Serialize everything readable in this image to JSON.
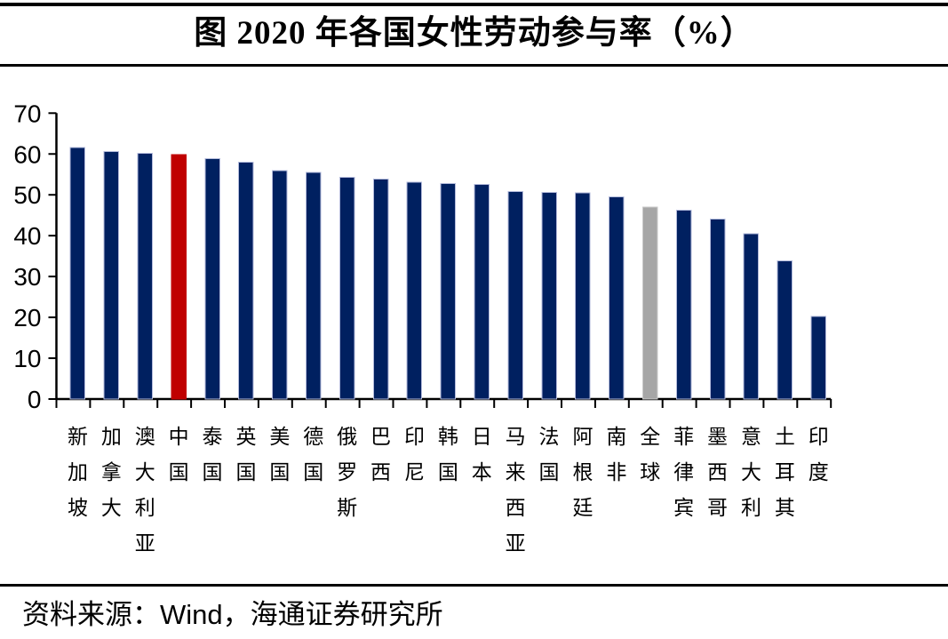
{
  "title": "图  2020 年各国女性劳动参与率（%）",
  "footer": "资料来源：Wind，海通证券研究所",
  "colors": {
    "bar_default": "#002060",
    "bar_china_highlight": "#C00000",
    "bar_global": "#A6A6A6",
    "bar_border": "#b3badb",
    "axis": "#000000",
    "rule": "#000000"
  },
  "chart_data": {
    "type": "bar",
    "title": "图 2020 年各国女性劳动参与率（%）",
    "xlabel": "",
    "ylabel": "",
    "ylim": [
      0,
      70
    ],
    "yticks": [
      0,
      10,
      20,
      30,
      40,
      50,
      60,
      70
    ],
    "grid": false,
    "legend": null,
    "categories": [
      "新加坡",
      "加拿大",
      "澳大利亚",
      "中国",
      "泰国",
      "英国",
      "美国",
      "德国",
      "俄罗斯",
      "巴西",
      "印尼",
      "韩国",
      "日本",
      "马来西亚",
      "法国",
      "阿根廷",
      "南非",
      "全球",
      "菲律宾",
      "墨西哥",
      "意大利",
      "土耳其",
      "印度"
    ],
    "values": [
      61.6,
      60.6,
      60.2,
      59.8,
      58.9,
      58.0,
      55.9,
      55.5,
      54.3,
      53.9,
      53.1,
      52.8,
      52.5,
      50.8,
      50.6,
      50.5,
      49.5,
      47.0,
      46.2,
      44.1,
      40.5,
      33.8,
      20.2
    ],
    "bar_colors": [
      "#002060",
      "#002060",
      "#002060",
      "#C00000",
      "#002060",
      "#002060",
      "#002060",
      "#002060",
      "#002060",
      "#002060",
      "#002060",
      "#002060",
      "#002060",
      "#002060",
      "#002060",
      "#002060",
      "#002060",
      "#A6A6A6",
      "#002060",
      "#002060",
      "#002060",
      "#002060",
      "#002060"
    ]
  }
}
